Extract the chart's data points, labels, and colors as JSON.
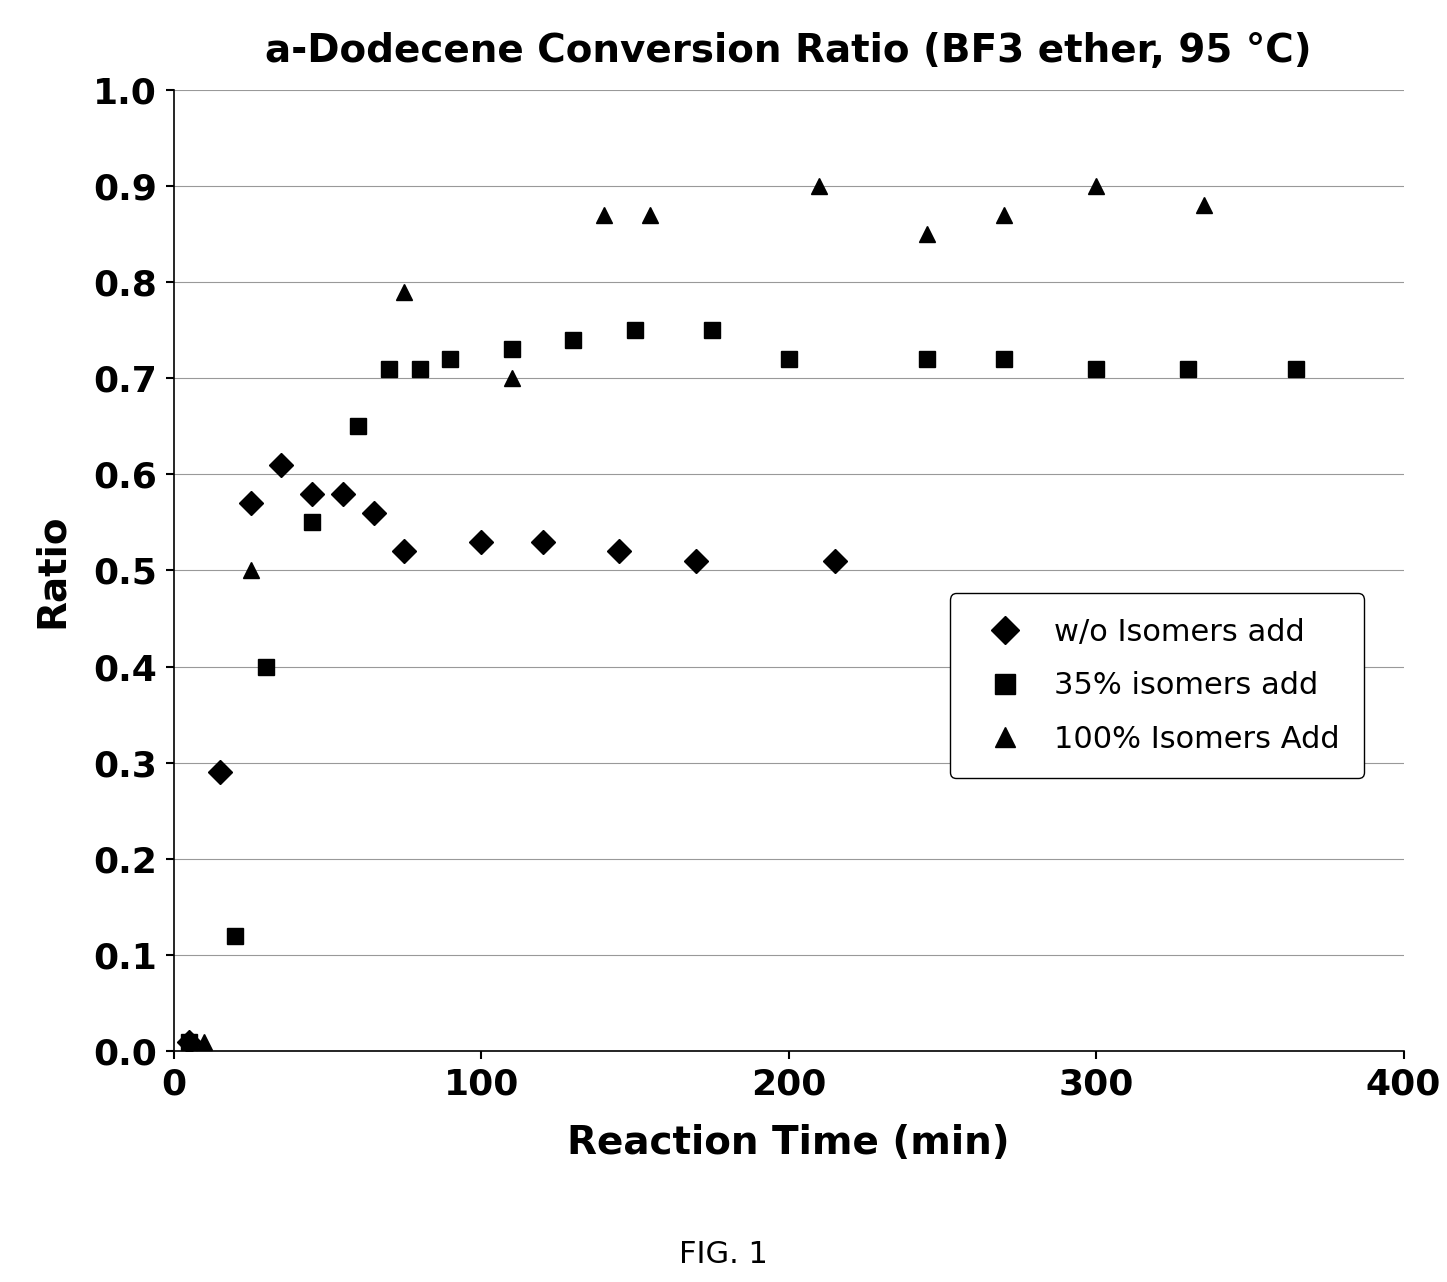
{
  "title": "a-Dodecene Conversion Ratio (BF3 ether, 95 °C)",
  "xlabel": "Reaction Time (min)",
  "ylabel": "Ratio",
  "fig_note": "FIG. 1",
  "xlim": [
    0,
    400
  ],
  "ylim": [
    0,
    1.0
  ],
  "xticks": [
    0,
    100,
    200,
    300,
    400
  ],
  "yticks": [
    0,
    0.1,
    0.2,
    0.3,
    0.4,
    0.5,
    0.6,
    0.7,
    0.8,
    0.9,
    1
  ],
  "series": [
    {
      "label": "w/o Isomers add",
      "marker": "D",
      "color": "#000000",
      "markersize": 12,
      "x": [
        5,
        15,
        25,
        35,
        45,
        55,
        65,
        75,
        100,
        120,
        145,
        170,
        215
      ],
      "y": [
        0.01,
        0.29,
        0.57,
        0.61,
        0.58,
        0.58,
        0.56,
        0.52,
        0.53,
        0.53,
        0.52,
        0.51,
        0.51
      ]
    },
    {
      "label": "35% isomers add",
      "marker": "s",
      "color": "#000000",
      "markersize": 12,
      "x": [
        5,
        20,
        30,
        45,
        60,
        70,
        80,
        90,
        110,
        130,
        150,
        175,
        200,
        245,
        270,
        300,
        330,
        365
      ],
      "y": [
        0.01,
        0.12,
        0.4,
        0.55,
        0.65,
        0.71,
        0.71,
        0.72,
        0.73,
        0.74,
        0.75,
        0.75,
        0.72,
        0.72,
        0.72,
        0.71,
        0.71,
        0.71
      ]
    },
    {
      "label": "100% Isomers Add",
      "marker": "^",
      "color": "#000000",
      "markersize": 12,
      "x": [
        10,
        25,
        75,
        110,
        140,
        155,
        210,
        245,
        270,
        300,
        335
      ],
      "y": [
        0.01,
        0.5,
        0.79,
        0.7,
        0.87,
        0.87,
        0.9,
        0.85,
        0.87,
        0.9,
        0.88
      ]
    }
  ],
  "background_color": "#ffffff",
  "grid_color": "#999999",
  "title_fontsize": 28,
  "axis_label_fontsize": 28,
  "tick_fontsize": 26,
  "legend_fontsize": 22,
  "fig_note_fontsize": 22
}
